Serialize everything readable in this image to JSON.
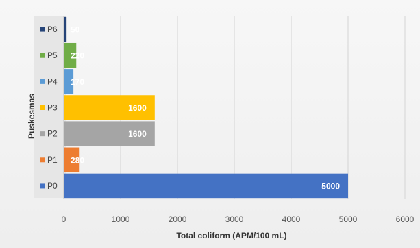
{
  "chart_data": {
    "type": "bar",
    "orientation": "horizontal",
    "categories": [
      "P0",
      "P1",
      "P2",
      "P3",
      "P4",
      "P5",
      "P6"
    ],
    "values": [
      5000,
      280,
      1600,
      1600,
      170,
      220,
      50
    ],
    "data_labels": [
      "5000",
      "280",
      "1600",
      "1600",
      "170",
      "220",
      "50"
    ],
    "colors": [
      "#4472c4",
      "#ed7d31",
      "#a5a5a5",
      "#ffc000",
      "#5b9bd5",
      "#70ad47",
      "#264478"
    ],
    "xlabel": "Total coliform (APM/100 mL)",
    "ylabel": "Puskesmas",
    "xlim": [
      0,
      6000
    ],
    "xticks": [
      "0",
      "1000",
      "2000",
      "3000",
      "4000",
      "5000",
      "6000"
    ],
    "grid": true,
    "legend_markers": true
  }
}
